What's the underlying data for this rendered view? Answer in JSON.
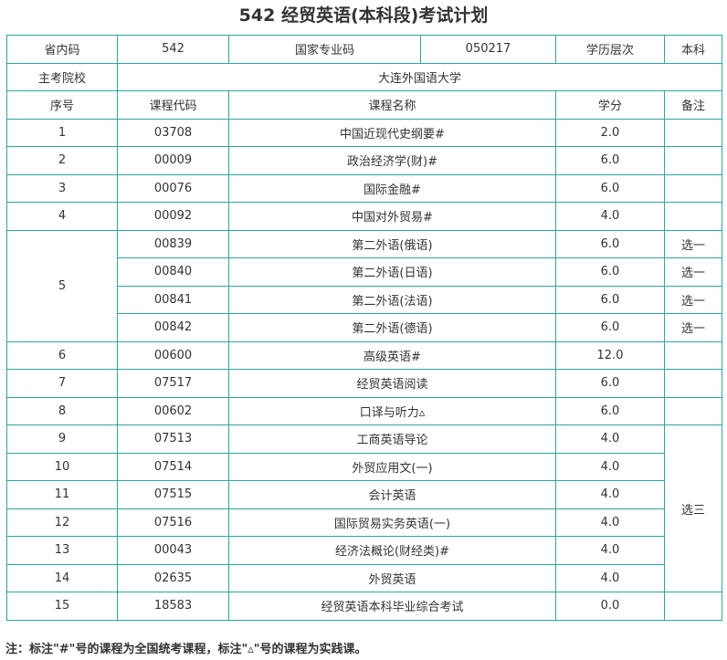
{
  "title": "542 经贸英语(本科段)考试计划",
  "info": {
    "province_code_label": "省内码",
    "province_code": "542",
    "national_code_label": "国家专业码",
    "national_code": "050217",
    "level_label": "学历层次",
    "level": "本科",
    "school_label": "主考院校",
    "school": "大连外国语大学"
  },
  "headers": {
    "seq": "序号",
    "code": "课程代码",
    "name": "课程名称",
    "credit": "学分",
    "remark": "备注"
  },
  "courses": [
    {
      "seq": "1",
      "code": "03708",
      "name": "中国近现代史纲要#",
      "credit": "2.0",
      "remark": ""
    },
    {
      "seq": "2",
      "code": "00009",
      "name": "政治经济学(财)#",
      "credit": "6.0",
      "remark": ""
    },
    {
      "seq": "3",
      "code": "00076",
      "name": "国际金融#",
      "credit": "6.0",
      "remark": ""
    },
    {
      "seq": "4",
      "code": "00092",
      "name": "中国对外贸易#",
      "credit": "4.0",
      "remark": ""
    },
    {
      "seq": "5",
      "code": "00839",
      "name": "第二外语(俄语)",
      "credit": "6.0",
      "remark": "选一"
    },
    {
      "seq": "",
      "code": "00840",
      "name": "第二外语(日语)",
      "credit": "6.0",
      "remark": "选一"
    },
    {
      "seq": "",
      "code": "00841",
      "name": "第二外语(法语)",
      "credit": "6.0",
      "remark": "选一"
    },
    {
      "seq": "",
      "code": "00842",
      "name": "第二外语(德语)",
      "credit": "6.0",
      "remark": "选一"
    },
    {
      "seq": "6",
      "code": "00600",
      "name": "高级英语#",
      "credit": "12.0",
      "remark": ""
    },
    {
      "seq": "7",
      "code": "07517",
      "name": "经贸英语阅读",
      "credit": "6.0",
      "remark": ""
    },
    {
      "seq": "8",
      "code": "00602",
      "name": "口译与听力▵",
      "credit": "6.0",
      "remark": ""
    },
    {
      "seq": "9",
      "code": "07513",
      "name": "工商英语导论",
      "credit": "4.0",
      "remark": "选三"
    },
    {
      "seq": "10",
      "code": "07514",
      "name": "外贸应用文(一)",
      "credit": "4.0",
      "remark": ""
    },
    {
      "seq": "11",
      "code": "07515",
      "name": "会计英语",
      "credit": "4.0",
      "remark": ""
    },
    {
      "seq": "12",
      "code": "07516",
      "name": "国际贸易实务英语(一)",
      "credit": "4.0",
      "remark": ""
    },
    {
      "seq": "13",
      "code": "00043",
      "name": "经济法概论(财经类)#",
      "credit": "4.0",
      "remark": ""
    },
    {
      "seq": "14",
      "code": "02635",
      "name": "外贸英语",
      "credit": "4.0",
      "remark": ""
    },
    {
      "seq": "15",
      "code": "18583",
      "name": "经贸英语本科毕业综合考试",
      "credit": "0.0",
      "remark": ""
    }
  ],
  "note": "注：标注\"#\"号的课程为全国统考课程，标注\"▵\"号的课程为实践课。",
  "colors": {
    "border": "#2ba6a1"
  }
}
